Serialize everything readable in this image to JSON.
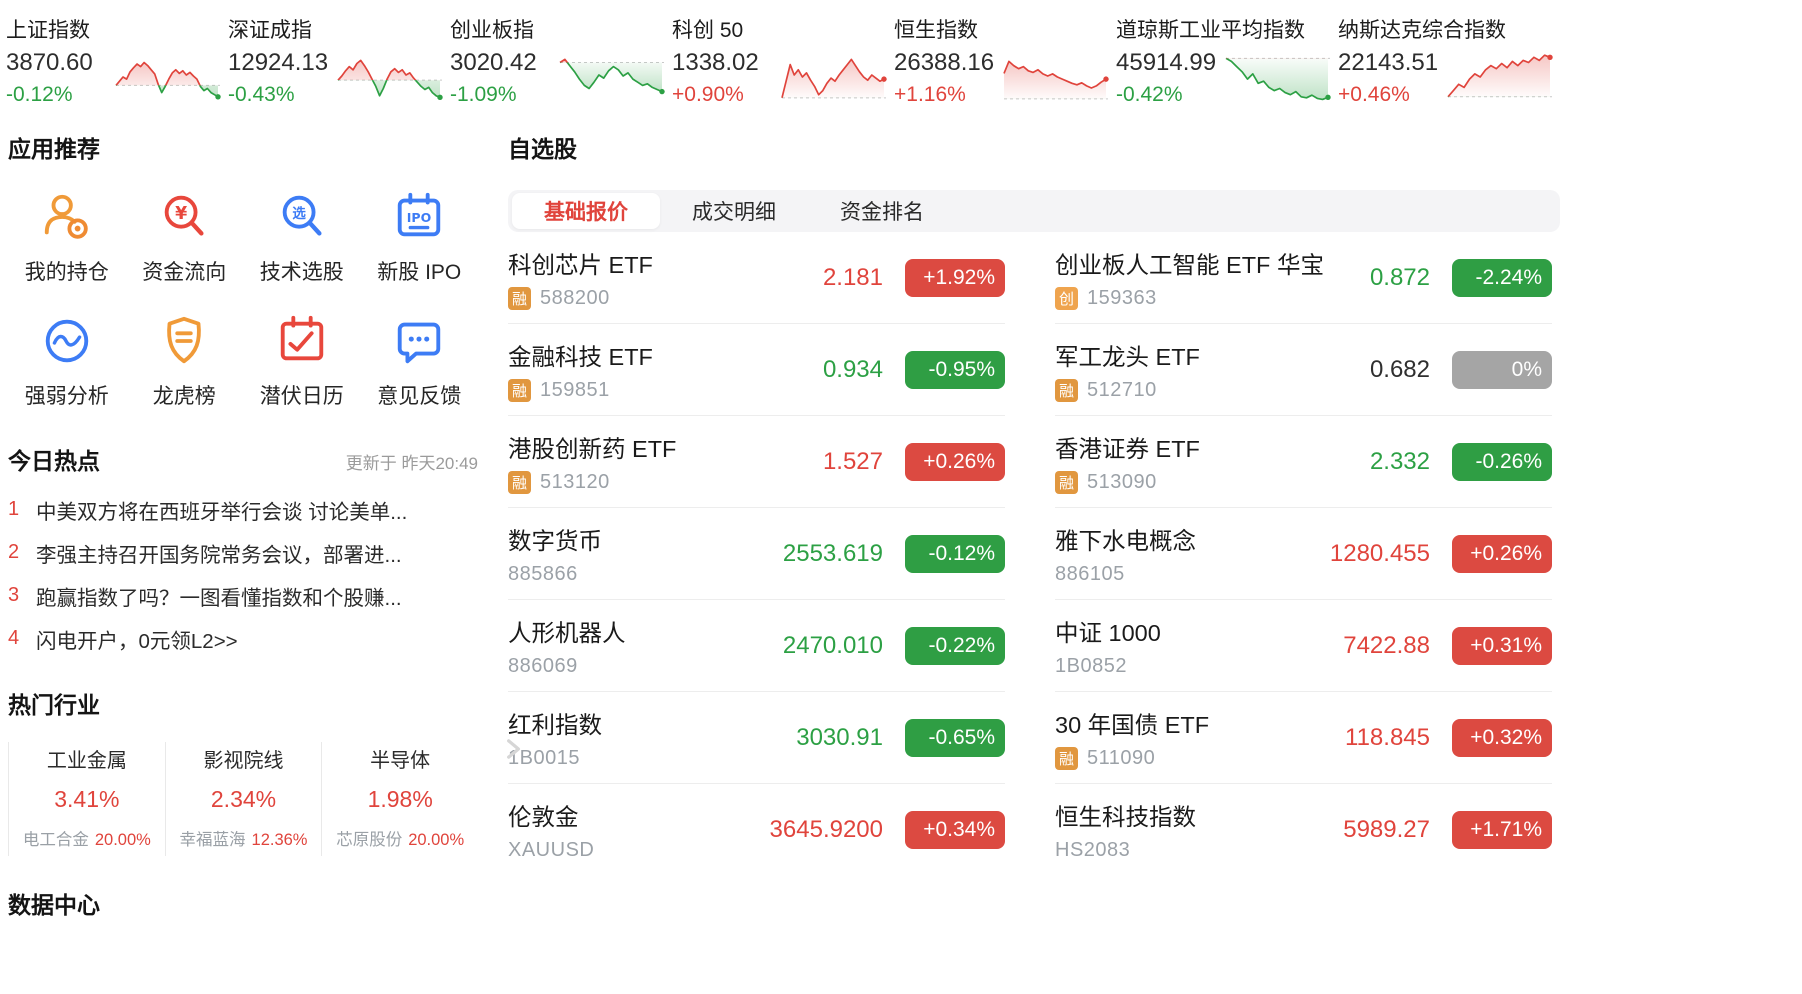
{
  "colors": {
    "up": "#e0443c",
    "down": "#2ca044",
    "up_badge": "#dc4a41",
    "down_badge": "#2f9e44",
    "flat_badge": "#a5a5a5",
    "tag_rong": "#e1973f",
    "tag_chuang": "#efa44e",
    "accent_blue": "#3d7cf5",
    "accent_orange": "#f09a38"
  },
  "indices": [
    {
      "name": "上证指数",
      "value": "3870.60",
      "change": "-0.12%",
      "trend": "down",
      "spark": {
        "baseline": 32,
        "values": [
          32,
          40,
          48,
          44,
          58,
          66,
          73,
          68,
          76,
          70,
          62,
          54,
          34,
          18,
          30,
          44,
          56,
          62,
          55,
          60,
          52,
          57,
          50,
          44,
          30,
          22,
          26,
          18,
          14,
          10
        ]
      }
    },
    {
      "name": "深证成指",
      "value": "12924.13",
      "change": "-0.43%",
      "trend": "down",
      "spark": {
        "baseline": 42,
        "values": [
          42,
          50,
          60,
          68,
          62,
          74,
          80,
          70,
          58,
          44,
          30,
          12,
          26,
          44,
          58,
          64,
          57,
          62,
          52,
          56,
          46,
          38,
          30,
          24,
          28,
          18,
          12,
          9
        ]
      }
    },
    {
      "name": "创业板指",
      "value": "3020.42",
      "change": "-1.09%",
      "trend": "down",
      "spark": {
        "baseline": 76,
        "values": [
          76,
          82,
          70,
          58,
          44,
          32,
          26,
          38,
          52,
          46,
          60,
          68,
          62,
          50,
          56,
          44,
          38,
          32,
          35,
          28,
          24,
          20
        ]
      }
    },
    {
      "name": "科创 50",
      "value": "1338.02",
      "change": "+0.90%",
      "trend": "up",
      "spark": {
        "baseline": 8,
        "values": [
          8,
          40,
          72,
          52,
          62,
          48,
          56,
          42,
          30,
          14,
          22,
          36,
          46,
          40,
          52,
          62,
          72,
          82,
          70,
          58,
          48,
          42,
          52,
          46,
          40,
          44
        ]
      }
    },
    {
      "name": "恒生指数",
      "value": "26388.16",
      "change": "+1.16%",
      "trend": "up",
      "spark": {
        "baseline": 6,
        "values": [
          55,
          78,
          70,
          64,
          68,
          60,
          57,
          62,
          54,
          50,
          54,
          48,
          44,
          40,
          36,
          33,
          37,
          31,
          27,
          31,
          38,
          44
        ]
      }
    },
    {
      "name": "道琼斯工业平均指数",
      "value": "45914.99",
      "change": "-0.42%",
      "trend": "down",
      "spark": {
        "baseline": 84,
        "values": [
          84,
          78,
          68,
          58,
          44,
          54,
          36,
          40,
          28,
          22,
          26,
          18,
          14,
          20,
          10,
          8,
          13,
          7,
          5,
          9
        ]
      }
    },
    {
      "name": "纳斯达克综合指数",
      "value": "22143.51",
      "change": "+0.46%",
      "trend": "up",
      "spark": {
        "baseline": 10,
        "values": [
          10,
          22,
          34,
          28,
          44,
          54,
          48,
          62,
          70,
          64,
          74,
          66,
          78,
          70,
          80,
          76,
          86,
          80,
          90,
          86
        ]
      }
    }
  ],
  "app_section": {
    "title": "应用推荐",
    "items": [
      {
        "label": "我的持仓",
        "icon": "portfolio-icon"
      },
      {
        "label": "资金流向",
        "icon": "money-flow-icon"
      },
      {
        "label": "技术选股",
        "icon": "stock-select-icon"
      },
      {
        "label": "新股 IPO",
        "icon": "ipo-icon"
      },
      {
        "label": "强弱分析",
        "icon": "strength-analysis-icon"
      },
      {
        "label": "龙虎榜",
        "icon": "dragon-tiger-icon"
      },
      {
        "label": "潜伏日历",
        "icon": "ambush-calendar-icon"
      },
      {
        "label": "意见反馈",
        "icon": "feedback-icon"
      }
    ]
  },
  "hot_news": {
    "title": "今日热点",
    "updated": "更新于 昨天20:49",
    "items": [
      {
        "rank": "1",
        "text": "中美双方将在西班牙举行会谈 讨论美单..."
      },
      {
        "rank": "2",
        "text": "李强主持召开国务院常务会议，部署进..."
      },
      {
        "rank": "3",
        "text": "跑赢指数了吗？一图看懂指数和个股赚..."
      },
      {
        "rank": "4",
        "text": "闪电开户，0元领L2>>"
      }
    ]
  },
  "industries": {
    "title": "热门行业",
    "items": [
      {
        "name": "工业金属",
        "pct": "3.41%",
        "stock": "电工合金",
        "stock_pct": "20.00%"
      },
      {
        "name": "影视院线",
        "pct": "2.34%",
        "stock": "幸福蓝海",
        "stock_pct": "12.36%"
      },
      {
        "name": "半导体",
        "pct": "1.98%",
        "stock": "芯原股份",
        "stock_pct": "20.00%"
      }
    ]
  },
  "data_center": {
    "title": "数据中心"
  },
  "watchlist": {
    "title": "自选股",
    "tabs": [
      {
        "label": "基础报价",
        "state": "active"
      },
      {
        "label": "成交明细",
        "state": ""
      },
      {
        "label": "资金排名",
        "state": ""
      }
    ],
    "left_rows": [
      {
        "name": "科创芯片 ETF",
        "tag": "融",
        "tag_type": "rong",
        "code": "588200",
        "price": "2.181",
        "change": "+1.92%",
        "trend": "up"
      },
      {
        "name": "金融科技 ETF",
        "tag": "融",
        "tag_type": "rong",
        "code": "159851",
        "price": "0.934",
        "change": "-0.95%",
        "trend": "down"
      },
      {
        "name": "港股创新药 ETF",
        "tag": "融",
        "tag_type": "rong",
        "code": "513120",
        "price": "1.527",
        "change": "+0.26%",
        "trend": "up"
      },
      {
        "name": "数字货币",
        "tag": "",
        "tag_type": "",
        "code": "885866",
        "price": "2553.619",
        "change": "-0.12%",
        "trend": "down"
      },
      {
        "name": "人形机器人",
        "tag": "",
        "tag_type": "",
        "code": "886069",
        "price": "2470.010",
        "change": "-0.22%",
        "trend": "down"
      },
      {
        "name": "红利指数",
        "tag": "",
        "tag_type": "",
        "code": "1B0015",
        "price": "3030.91",
        "change": "-0.65%",
        "trend": "down"
      },
      {
        "name": "伦敦金",
        "tag": "",
        "tag_type": "",
        "code": "XAUUSD",
        "price": "3645.9200",
        "change": "+0.34%",
        "trend": "up"
      }
    ],
    "right_rows": [
      {
        "name": "创业板人工智能 ETF 华宝",
        "tag": "创",
        "tag_type": "chuang",
        "code": "159363",
        "price": "0.872",
        "change": "-2.24%",
        "trend": "down"
      },
      {
        "name": "军工龙头 ETF",
        "tag": "融",
        "tag_type": "rong",
        "code": "512710",
        "price": "0.682",
        "change": "0%",
        "trend": "flat"
      },
      {
        "name": "香港证券 ETF",
        "tag": "融",
        "tag_type": "rong",
        "code": "513090",
        "price": "2.332",
        "change": "-0.26%",
        "trend": "down"
      },
      {
        "name": "雅下水电概念",
        "tag": "",
        "tag_type": "",
        "code": "886105",
        "price": "1280.455",
        "change": "+0.26%",
        "trend": "up"
      },
      {
        "name": "中证 1000",
        "tag": "",
        "tag_type": "",
        "code": "1B0852",
        "price": "7422.88",
        "change": "+0.31%",
        "trend": "up"
      },
      {
        "name": "30 年国债 ETF",
        "tag": "融",
        "tag_type": "rong",
        "code": "511090",
        "price": "118.845",
        "change": "+0.32%",
        "trend": "up"
      },
      {
        "name": "恒生科技指数",
        "tag": "",
        "tag_type": "",
        "code": "HS2083",
        "price": "5989.27",
        "change": "+1.71%",
        "trend": "up"
      }
    ]
  }
}
